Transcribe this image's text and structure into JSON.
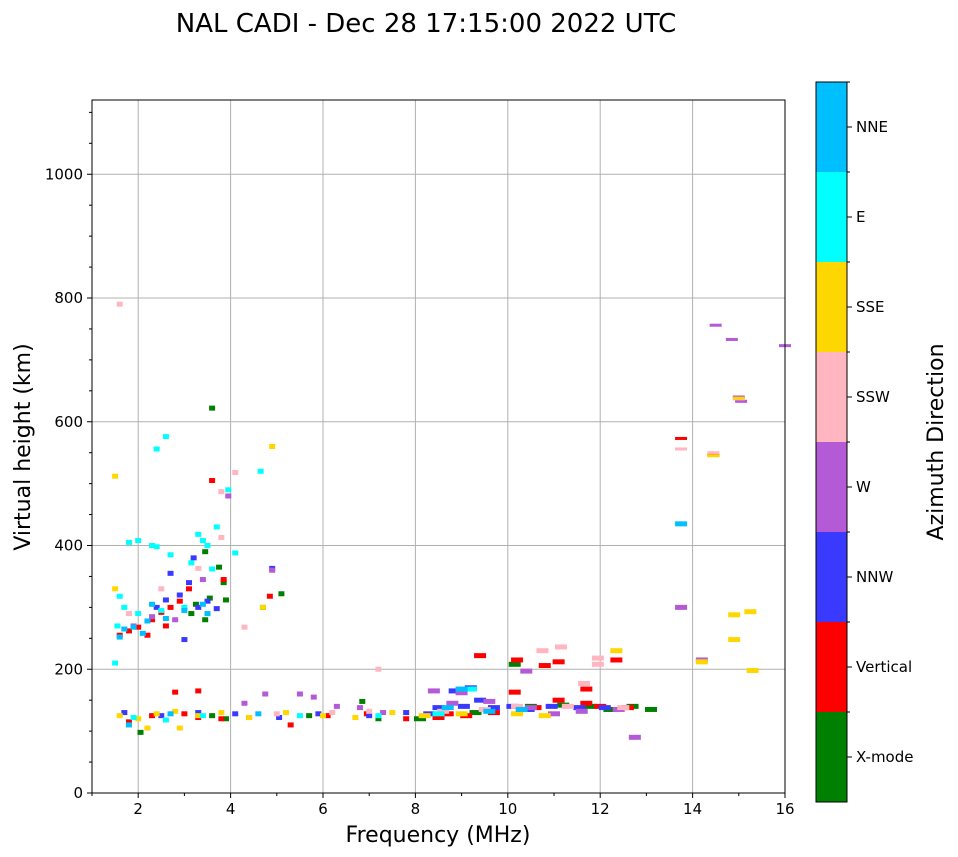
{
  "chart_data": {
    "type": "scatter",
    "title": "NAL CADI - Dec 28 17:15:00 2022 UTC",
    "xlabel": "Frequency (MHz)",
    "ylabel": "Virtual height (km)",
    "xlim": [
      1,
      16
    ],
    "ylim": [
      0,
      1120
    ],
    "grid": true,
    "x_ticks": [
      2,
      4,
      6,
      8,
      10,
      12,
      14,
      16
    ],
    "y_ticks": [
      0,
      200,
      400,
      600,
      800,
      1000
    ],
    "x_tick_labels": [
      "2",
      "4",
      "6",
      "8",
      "10",
      "12",
      "14",
      "16"
    ],
    "y_tick_labels": [
      "0",
      "200",
      "400",
      "600",
      "800",
      "1000"
    ],
    "colorbar": {
      "label": "Azimuth Direction",
      "categories": [
        "X-mode",
        "Vertical",
        "NNW",
        "W",
        "SSW",
        "SSE",
        "E",
        "NNE"
      ],
      "colors": [
        "#008000",
        "#ff0000",
        "#3a3aff",
        "#b45ad6",
        "#ffb6c1",
        "#ffd700",
        "#00ffff",
        "#00bfff"
      ]
    },
    "series": [
      {
        "name": "X-mode",
        "points": [
          [
            3.6,
            622
          ],
          [
            3.45,
            390
          ],
          [
            3.75,
            365
          ],
          [
            3.85,
            340
          ],
          [
            3.55,
            315
          ],
          [
            3.25,
            305
          ],
          [
            3.45,
            280
          ],
          [
            3.15,
            290
          ],
          [
            3.9,
            312
          ],
          [
            2.05,
            98
          ],
          [
            4.7,
            300
          ],
          [
            5.1,
            322
          ],
          [
            6.85,
            148
          ],
          [
            3.6,
            125
          ],
          [
            5.7,
            125
          ],
          [
            7.2,
            120
          ],
          [
            8.1,
            120
          ],
          [
            9.3,
            130
          ],
          [
            10.15,
            208
          ],
          [
            10.5,
            140
          ],
          [
            12.2,
            135
          ],
          [
            12.7,
            140
          ],
          [
            13.1,
            135
          ],
          [
            11.2,
            142
          ],
          [
            11.8,
            140
          ],
          [
            3.9,
            120
          ]
        ]
      },
      {
        "name": "Vertical",
        "points": [
          [
            1.6,
            255
          ],
          [
            1.8,
            262
          ],
          [
            2.0,
            268
          ],
          [
            2.3,
            280
          ],
          [
            2.5,
            292
          ],
          [
            2.7,
            300
          ],
          [
            2.9,
            310
          ],
          [
            3.1,
            330
          ],
          [
            2.2,
            255
          ],
          [
            2.6,
            270
          ],
          [
            3.6,
            505
          ],
          [
            3.85,
            345
          ],
          [
            4.85,
            318
          ],
          [
            1.8,
            115
          ],
          [
            2.3,
            125
          ],
          [
            3.0,
            128
          ],
          [
            3.3,
            122
          ],
          [
            3.8,
            120
          ],
          [
            4.4,
            122
          ],
          [
            5.3,
            110
          ],
          [
            6.1,
            125
          ],
          [
            6.95,
            128
          ],
          [
            7.8,
            120
          ],
          [
            8.5,
            122
          ],
          [
            9.4,
            222
          ],
          [
            10.2,
            215
          ],
          [
            10.15,
            163
          ],
          [
            10.8,
            206
          ],
          [
            11.1,
            212
          ],
          [
            11.7,
            168
          ],
          [
            12.35,
            215
          ],
          [
            11.1,
            150
          ],
          [
            11.7,
            145
          ],
          [
            12.0,
            140
          ],
          [
            12.6,
            138
          ],
          [
            13.75,
            573
          ],
          [
            14.45,
            546
          ],
          [
            8.7,
            128
          ],
          [
            9.1,
            125
          ],
          [
            9.7,
            130
          ],
          [
            10.6,
            138
          ],
          [
            3.3,
            165
          ],
          [
            2.8,
            163
          ]
        ]
      },
      {
        "name": "NNW",
        "points": [
          [
            2.6,
            312
          ],
          [
            2.9,
            320
          ],
          [
            3.1,
            340
          ],
          [
            3.3,
            300
          ],
          [
            3.5,
            310
          ],
          [
            3.2,
            380
          ],
          [
            3.7,
            298
          ],
          [
            2.4,
            300
          ],
          [
            2.7,
            355
          ],
          [
            4.9,
            363
          ],
          [
            1.7,
            130
          ],
          [
            2.5,
            125
          ],
          [
            3.3,
            130
          ],
          [
            4.1,
            128
          ],
          [
            5.05,
            122
          ],
          [
            5.9,
            128
          ],
          [
            7.0,
            125
          ],
          [
            7.8,
            130
          ],
          [
            8.5,
            138
          ],
          [
            8.85,
            165
          ],
          [
            9.05,
            140
          ],
          [
            9.4,
            150
          ],
          [
            9.7,
            138
          ],
          [
            10.1,
            140
          ],
          [
            10.45,
            135
          ],
          [
            10.95,
            140
          ],
          [
            11.55,
            138
          ],
          [
            12.1,
            138
          ],
          [
            8.3,
            128
          ],
          [
            9.2,
            170
          ],
          [
            3.0,
            248
          ]
        ]
      },
      {
        "name": "W",
        "points": [
          [
            14.5,
            756
          ],
          [
            14.85,
            733
          ],
          [
            15.05,
            633
          ],
          [
            16.0,
            723
          ],
          [
            15.0,
            640
          ],
          [
            13.75,
            300
          ],
          [
            14.2,
            215
          ],
          [
            12.75,
            90
          ],
          [
            1.9,
            270
          ],
          [
            2.3,
            285
          ],
          [
            2.8,
            280
          ],
          [
            3.4,
            345
          ],
          [
            3.95,
            480
          ],
          [
            4.9,
            360
          ],
          [
            4.3,
            145
          ],
          [
            4.75,
            160
          ],
          [
            5.5,
            160
          ],
          [
            5.8,
            155
          ],
          [
            6.3,
            140
          ],
          [
            6.8,
            138
          ],
          [
            7.3,
            130
          ],
          [
            8.8,
            145
          ],
          [
            9.6,
            148
          ],
          [
            10.5,
            138
          ],
          [
            11.0,
            128
          ],
          [
            11.6,
            132
          ],
          [
            12.4,
            135
          ],
          [
            10.4,
            197
          ],
          [
            8.4,
            165
          ],
          [
            9.0,
            162
          ]
        ]
      },
      {
        "name": "SSW",
        "points": [
          [
            13.75,
            556
          ],
          [
            14.45,
            550
          ],
          [
            15.0,
            637
          ],
          [
            4.1,
            518
          ],
          [
            3.8,
            487
          ],
          [
            7.2,
            200
          ],
          [
            10.75,
            230
          ],
          [
            11.15,
            236
          ],
          [
            11.95,
            218
          ],
          [
            11.95,
            208
          ],
          [
            11.65,
            177
          ],
          [
            3.3,
            363
          ],
          [
            3.8,
            413
          ],
          [
            4.3,
            268
          ],
          [
            1.8,
            290
          ],
          [
            2.5,
            330
          ],
          [
            5.0,
            128
          ],
          [
            6.2,
            130
          ],
          [
            7.0,
            132
          ],
          [
            8.6,
            132
          ],
          [
            9.5,
            135
          ],
          [
            10.2,
            140
          ],
          [
            11.3,
            140
          ],
          [
            12.5,
            138
          ],
          [
            1.6,
            790
          ]
        ]
      },
      {
        "name": "SSE",
        "points": [
          [
            14.45,
            545
          ],
          [
            15.0,
            638
          ],
          [
            12.35,
            230
          ],
          [
            15.25,
            293
          ],
          [
            14.9,
            288
          ],
          [
            14.9,
            248
          ],
          [
            15.3,
            198
          ],
          [
            14.2,
            212
          ],
          [
            4.9,
            560
          ],
          [
            1.5,
            512
          ],
          [
            1.5,
            330
          ],
          [
            1.6,
            125
          ],
          [
            2.0,
            120
          ],
          [
            2.4,
            128
          ],
          [
            2.8,
            132
          ],
          [
            3.3,
            125
          ],
          [
            3.8,
            130
          ],
          [
            4.4,
            122
          ],
          [
            5.2,
            130
          ],
          [
            6.0,
            125
          ],
          [
            6.7,
            122
          ],
          [
            7.5,
            130
          ],
          [
            8.2,
            125
          ],
          [
            9.0,
            128
          ],
          [
            10.2,
            128
          ],
          [
            10.8,
            125
          ],
          [
            2.2,
            105
          ],
          [
            2.9,
            105
          ],
          [
            4.7,
            300
          ]
        ]
      },
      {
        "name": "E",
        "points": [
          [
            2.6,
            576
          ],
          [
            2.4,
            556
          ],
          [
            4.65,
            520
          ],
          [
            3.95,
            490
          ],
          [
            3.3,
            418
          ],
          [
            3.7,
            430
          ],
          [
            3.4,
            408
          ],
          [
            3.5,
            400
          ],
          [
            2.3,
            400
          ],
          [
            2.4,
            398
          ],
          [
            2.0,
            408
          ],
          [
            1.8,
            405
          ],
          [
            2.7,
            385
          ],
          [
            3.15,
            372
          ],
          [
            3.6,
            362
          ],
          [
            4.1,
            388
          ],
          [
            1.6,
            318
          ],
          [
            1.7,
            300
          ],
          [
            2.0,
            290
          ],
          [
            2.5,
            295
          ],
          [
            3.0,
            300
          ],
          [
            1.5,
            210
          ],
          [
            1.9,
            122
          ],
          [
            2.6,
            118
          ],
          [
            3.4,
            125
          ],
          [
            5.5,
            125
          ],
          [
            7.2,
            125
          ],
          [
            8.5,
            128
          ],
          [
            9.2,
            168
          ],
          [
            1.55,
            270
          ]
        ]
      },
      {
        "name": "NNE",
        "points": [
          [
            1.7,
            265
          ],
          [
            1.9,
            268
          ],
          [
            2.2,
            278
          ],
          [
            2.6,
            282
          ],
          [
            3.0,
            295
          ],
          [
            3.4,
            305
          ],
          [
            2.3,
            305
          ],
          [
            1.6,
            252
          ],
          [
            2.1,
            258
          ],
          [
            3.5,
            290
          ],
          [
            1.8,
            110
          ],
          [
            2.7,
            128
          ],
          [
            4.6,
            128
          ],
          [
            8.7,
            138
          ],
          [
            9.0,
            168
          ],
          [
            9.6,
            132
          ],
          [
            10.3,
            135
          ],
          [
            13.75,
            435
          ]
        ]
      }
    ]
  }
}
